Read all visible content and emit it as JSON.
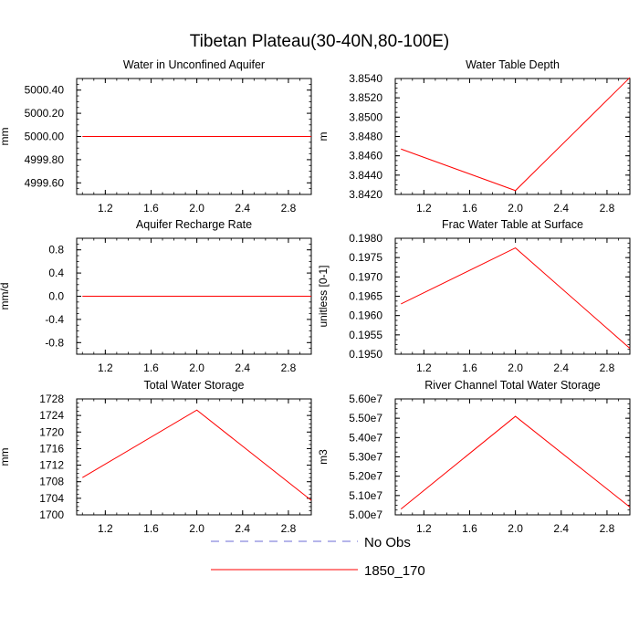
{
  "figure": {
    "title": "Tibetan Plateau(30-40N,80-100E)",
    "line_color": "#ff0000",
    "obs_line_color": "#6b6bd6",
    "legend": [
      {
        "label": "No Obs",
        "style": "dashed",
        "color": "#6b6bd6"
      },
      {
        "label": "1850_170",
        "style": "solid",
        "color": "#ff0000"
      }
    ]
  },
  "chart_data": [
    {
      "type": "line",
      "title": "Water in Unconfined Aquifer",
      "ylabel": "mm",
      "xlim": [
        0.95,
        3.0
      ],
      "ylim": [
        4999.5,
        5000.5
      ],
      "xticks": [
        1.2,
        1.6,
        2.0,
        2.4,
        2.8
      ],
      "xtick_labels": [
        "1.2",
        "1.6",
        "2.0",
        "2.4",
        "2.8"
      ],
      "yticks": [
        4999.6,
        4999.8,
        5000.0,
        5000.2,
        5000.4
      ],
      "ytick_labels": [
        "4999.60",
        "4999.80",
        "5000.00",
        "5000.20",
        "5000.40"
      ],
      "series": [
        {
          "name": "1850_170",
          "x": [
            1.0,
            2.0,
            3.0
          ],
          "y": [
            5000.0,
            5000.0,
            5000.0
          ]
        }
      ]
    },
    {
      "type": "line",
      "title": "Water Table Depth",
      "ylabel": "m",
      "xlim": [
        0.95,
        3.0
      ],
      "ylim": [
        3.842,
        3.854
      ],
      "xticks": [
        1.2,
        1.6,
        2.0,
        2.4,
        2.8
      ],
      "xtick_labels": [
        "1.2",
        "1.6",
        "2.0",
        "2.4",
        "2.8"
      ],
      "yticks": [
        3.842,
        3.844,
        3.846,
        3.848,
        3.85,
        3.852,
        3.854
      ],
      "ytick_labels": [
        "3.8420",
        "3.8440",
        "3.8460",
        "3.8480",
        "3.8500",
        "3.8520",
        "3.8540"
      ],
      "series": [
        {
          "name": "1850_170",
          "x": [
            1.0,
            2.0,
            3.0
          ],
          "y": [
            3.8467,
            3.8424,
            3.8541
          ]
        }
      ]
    },
    {
      "type": "line",
      "title": "Aquifer Recharge Rate",
      "ylabel": "mm/d",
      "xlim": [
        0.95,
        3.0
      ],
      "ylim": [
        -1.0,
        1.0
      ],
      "xticks": [
        1.2,
        1.6,
        2.0,
        2.4,
        2.8
      ],
      "xtick_labels": [
        "1.2",
        "1.6",
        "2.0",
        "2.4",
        "2.8"
      ],
      "yticks": [
        -0.8,
        -0.4,
        0.0,
        0.4,
        0.8
      ],
      "ytick_labels": [
        "-0.8",
        "-0.4",
        "0.0",
        "0.4",
        "0.8"
      ],
      "series": [
        {
          "name": "1850_170",
          "x": [
            1.0,
            2.0,
            3.0
          ],
          "y": [
            0.0,
            0.0,
            0.0
          ]
        }
      ]
    },
    {
      "type": "line",
      "title": "Frac Water Table at Surface",
      "ylabel": "unitless [0-1]",
      "xlim": [
        0.95,
        3.0
      ],
      "ylim": [
        0.195,
        0.198
      ],
      "xticks": [
        1.2,
        1.6,
        2.0,
        2.4,
        2.8
      ],
      "xtick_labels": [
        "1.2",
        "1.6",
        "2.0",
        "2.4",
        "2.8"
      ],
      "yticks": [
        0.195,
        0.1955,
        0.196,
        0.1965,
        0.197,
        0.1975,
        0.198
      ],
      "ytick_labels": [
        "0.1950",
        "0.1955",
        "0.1960",
        "0.1965",
        "0.1970",
        "0.1975",
        "0.1980"
      ],
      "series": [
        {
          "name": "1850_170",
          "x": [
            1.0,
            2.0,
            3.0
          ],
          "y": [
            0.1963,
            0.19775,
            0.19515
          ]
        }
      ]
    },
    {
      "type": "line",
      "title": "Total Water Storage",
      "ylabel": "mm",
      "xlim": [
        0.95,
        3.0
      ],
      "ylim": [
        1700,
        1728
      ],
      "xticks": [
        1.2,
        1.6,
        2.0,
        2.4,
        2.8
      ],
      "xtick_labels": [
        "1.2",
        "1.6",
        "2.0",
        "2.4",
        "2.8"
      ],
      "yticks": [
        1700,
        1704,
        1708,
        1712,
        1716,
        1720,
        1724,
        1728
      ],
      "ytick_labels": [
        "1700",
        "1704",
        "1708",
        "1712",
        "1716",
        "1720",
        "1724",
        "1728"
      ],
      "series": [
        {
          "name": "1850_170",
          "x": [
            1.0,
            2.0,
            3.0
          ],
          "y": [
            1709,
            1725.3,
            1703.5
          ]
        }
      ]
    },
    {
      "type": "line",
      "title": "River Channel Total Water Storage",
      "ylabel": "m3",
      "xlim": [
        0.95,
        3.0
      ],
      "ylim": [
        50000000,
        56000000
      ],
      "xticks": [
        1.2,
        1.6,
        2.0,
        2.4,
        2.8
      ],
      "xtick_labels": [
        "1.2",
        "1.6",
        "2.0",
        "2.4",
        "2.8"
      ],
      "yticks": [
        50000000,
        51000000,
        52000000,
        53000000,
        54000000,
        55000000,
        56000000
      ],
      "ytick_labels": [
        "5.00e7",
        "5.10e7",
        "5.20e7",
        "5.30e7",
        "5.40e7",
        "5.50e7",
        "5.60e7"
      ],
      "series": [
        {
          "name": "1850_170",
          "x": [
            1.0,
            2.0,
            3.0
          ],
          "y": [
            50300000,
            55100000,
            50400000
          ]
        }
      ]
    }
  ]
}
